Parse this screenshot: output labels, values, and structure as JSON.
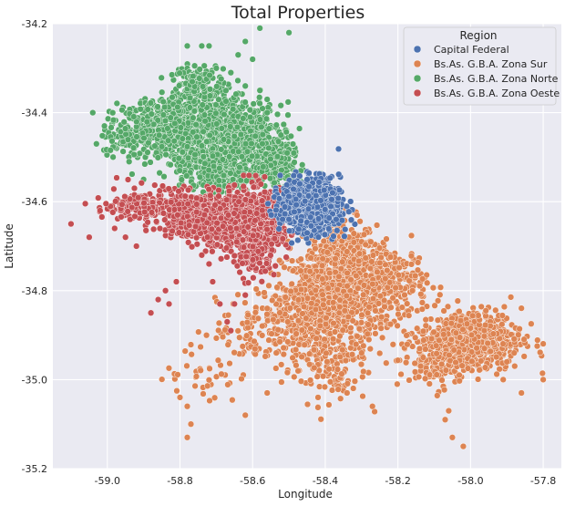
{
  "chart_data": {
    "type": "scatter",
    "title": "Total Properties",
    "xlabel": "Longitude",
    "ylabel": "Latitude",
    "xlim": [
      -59.15,
      -57.75
    ],
    "ylim": [
      -35.2,
      -34.2
    ],
    "x_ticks": [
      "-59.0",
      "-58.8",
      "-58.6",
      "-58.4",
      "-58.2",
      "-58.0",
      "-57.8"
    ],
    "y_ticks": [
      "-34.2",
      "-34.4",
      "-34.6",
      "-34.8",
      "-35.0",
      "-35.2"
    ],
    "grid": true,
    "legend": {
      "title": "Region",
      "placement": "top-right"
    },
    "series": [
      {
        "name": "Capital Federal",
        "color": "#4c72b0",
        "clusters": [
          {
            "cx": -58.44,
            "cy": -34.61,
            "sx": 0.04,
            "sy": 0.03,
            "n": 900
          }
        ],
        "points": [
          [
            -58.47,
            -34.56
          ],
          [
            -58.38,
            -34.58
          ],
          [
            -58.5,
            -34.64
          ],
          [
            -58.37,
            -34.64
          ],
          [
            -58.45,
            -34.67
          ]
        ]
      },
      {
        "name": "Bs.As. G.B.A. Zona Sur",
        "color": "#dd8452",
        "clusters": [
          {
            "cx": -58.36,
            "cy": -34.74,
            "sx": 0.05,
            "sy": 0.05,
            "n": 500
          },
          {
            "cx": -58.38,
            "cy": -34.82,
            "sx": 0.07,
            "sy": 0.06,
            "n": 500
          },
          {
            "cx": -58.22,
            "cy": -34.78,
            "sx": 0.05,
            "sy": 0.04,
            "n": 250
          },
          {
            "cx": -58.46,
            "cy": -34.86,
            "sx": 0.06,
            "sy": 0.04,
            "n": 250
          },
          {
            "cx": -58.0,
            "cy": -34.91,
            "sx": 0.07,
            "sy": 0.035,
            "n": 550
          },
          {
            "cx": -58.1,
            "cy": -34.96,
            "sx": 0.05,
            "sy": 0.03,
            "n": 120
          },
          {
            "cx": -58.4,
            "cy": -34.97,
            "sx": 0.06,
            "sy": 0.04,
            "n": 120
          },
          {
            "cx": -58.6,
            "cy": -34.9,
            "sx": 0.05,
            "sy": 0.04,
            "n": 80
          },
          {
            "cx": -58.74,
            "cy": -34.98,
            "sx": 0.05,
            "sy": 0.04,
            "n": 40
          }
        ],
        "points": [
          [
            -58.8,
            -35.04
          ],
          [
            -58.78,
            -35.06
          ],
          [
            -58.77,
            -35.1
          ],
          [
            -58.78,
            -35.13
          ],
          [
            -58.62,
            -35.08
          ],
          [
            -58.42,
            -35.04
          ],
          [
            -58.34,
            -35.03
          ],
          [
            -58.27,
            -35.06
          ],
          [
            -58.06,
            -35.07
          ],
          [
            -58.07,
            -35.09
          ],
          [
            -58.05,
            -35.13
          ],
          [
            -58.02,
            -35.15
          ],
          [
            -57.91,
            -35.0
          ],
          [
            -57.8,
            -35.0
          ],
          [
            -57.86,
            -35.03
          ],
          [
            -57.9,
            -34.96
          ],
          [
            -57.88,
            -34.94
          ],
          [
            -58.3,
            -34.94
          ],
          [
            -58.28,
            -34.91
          ],
          [
            -58.16,
            -34.8
          ],
          [
            -58.56,
            -34.84
          ],
          [
            -58.56,
            -35.03
          ]
        ]
      },
      {
        "name": "Bs.As. G.B.A. Zona Norte",
        "color": "#55a868",
        "clusters": [
          {
            "cx": -58.73,
            "cy": -34.41,
            "sx": 0.06,
            "sy": 0.04,
            "n": 450
          },
          {
            "cx": -58.62,
            "cy": -34.46,
            "sx": 0.05,
            "sy": 0.04,
            "n": 400
          },
          {
            "cx": -58.54,
            "cy": -34.51,
            "sx": 0.03,
            "sy": 0.03,
            "n": 300
          },
          {
            "cx": -58.85,
            "cy": -34.43,
            "sx": 0.05,
            "sy": 0.03,
            "n": 250
          },
          {
            "cx": -58.94,
            "cy": -34.45,
            "sx": 0.04,
            "sy": 0.03,
            "n": 120
          },
          {
            "cx": -58.74,
            "cy": -34.51,
            "sx": 0.05,
            "sy": 0.03,
            "n": 200
          },
          {
            "cx": -58.68,
            "cy": -34.55,
            "sx": 0.03,
            "sy": 0.02,
            "n": 120
          },
          {
            "cx": -58.75,
            "cy": -34.33,
            "sx": 0.03,
            "sy": 0.02,
            "n": 100
          }
        ],
        "points": [
          [
            -58.78,
            -34.25
          ],
          [
            -58.72,
            -34.25
          ],
          [
            -58.74,
            -34.25
          ],
          [
            -58.62,
            -34.24
          ],
          [
            -58.58,
            -34.21
          ],
          [
            -58.5,
            -34.22
          ],
          [
            -58.49,
            -34.2
          ],
          [
            -58.64,
            -34.27
          ],
          [
            -58.6,
            -34.28
          ],
          [
            -58.62,
            -34.34
          ],
          [
            -58.58,
            -34.35
          ],
          [
            -58.56,
            -34.4
          ],
          [
            -59.04,
            -34.4
          ],
          [
            -59.03,
            -34.47
          ],
          [
            -58.94,
            -34.51
          ],
          [
            -58.9,
            -34.55
          ],
          [
            -58.56,
            -34.37
          ],
          [
            -58.66,
            -34.31
          ],
          [
            -58.7,
            -34.3
          ]
        ]
      },
      {
        "name": "Bs.As. G.B.A. Zona Oeste",
        "color": "#c44e52",
        "clusters": [
          {
            "cx": -58.58,
            "cy": -34.64,
            "sx": 0.04,
            "sy": 0.035,
            "n": 450
          },
          {
            "cx": -58.67,
            "cy": -34.64,
            "sx": 0.05,
            "sy": 0.03,
            "n": 450
          },
          {
            "cx": -58.77,
            "cy": -34.63,
            "sx": 0.04,
            "sy": 0.025,
            "n": 300
          },
          {
            "cx": -58.88,
            "cy": -34.61,
            "sx": 0.04,
            "sy": 0.02,
            "n": 150
          },
          {
            "cx": -58.6,
            "cy": -34.71,
            "sx": 0.03,
            "sy": 0.03,
            "n": 150
          },
          {
            "cx": -58.97,
            "cy": -34.61,
            "sx": 0.03,
            "sy": 0.015,
            "n": 40
          }
        ],
        "points": [
          [
            -59.1,
            -34.65
          ],
          [
            -59.05,
            -34.68
          ],
          [
            -59.02,
            -34.62
          ],
          [
            -58.98,
            -34.66
          ],
          [
            -58.95,
            -34.68
          ],
          [
            -58.92,
            -34.7
          ],
          [
            -58.84,
            -34.8
          ],
          [
            -58.81,
            -34.78
          ],
          [
            -58.86,
            -34.82
          ],
          [
            -58.83,
            -34.83
          ],
          [
            -58.88,
            -34.85
          ],
          [
            -58.71,
            -34.78
          ],
          [
            -58.69,
            -34.83
          ],
          [
            -58.67,
            -34.87
          ],
          [
            -58.66,
            -34.89
          ],
          [
            -58.65,
            -34.83
          ],
          [
            -58.62,
            -34.81
          ],
          [
            -58.74,
            -34.72
          ],
          [
            -58.72,
            -34.74
          ]
        ]
      }
    ]
  }
}
